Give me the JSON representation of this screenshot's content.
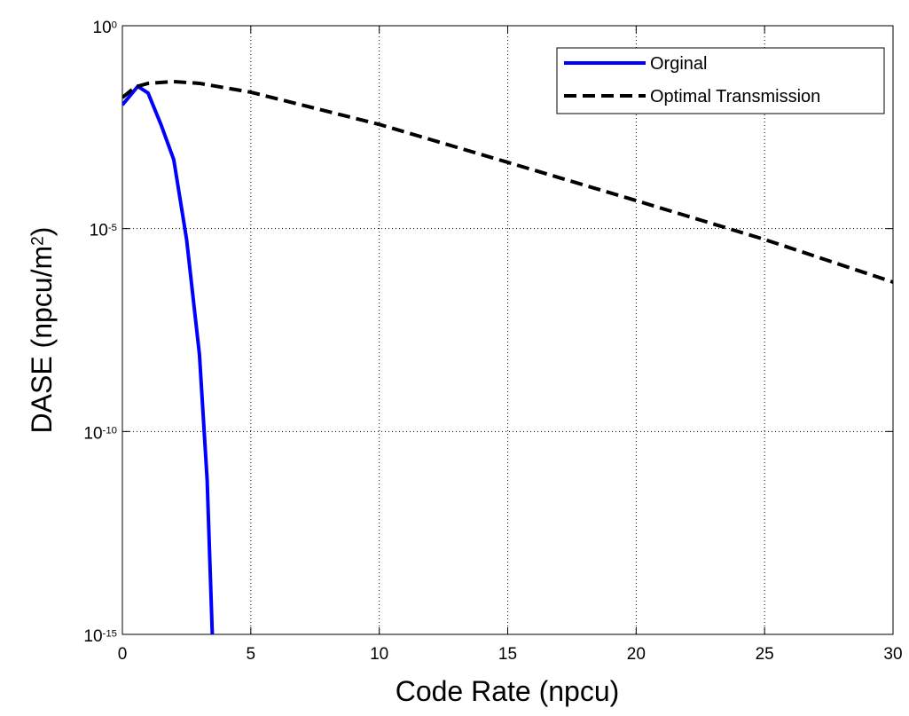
{
  "chart_data": {
    "type": "line",
    "xlabel": "Code Rate (npcu)",
    "ylabel": "DASE (npcu/m^2)",
    "xlim": [
      0,
      30
    ],
    "xticks": [
      0,
      5,
      10,
      15,
      20,
      25,
      30
    ],
    "ylim": [
      1e-15,
      1
    ],
    "ylog": true,
    "yticks": [
      {
        "value": 1e-15,
        "label": "10^-15"
      },
      {
        "value": 1e-10,
        "label": "10^-10"
      },
      {
        "value": 1e-05,
        "label": "10^-5"
      },
      {
        "value": 1,
        "label": "10^0"
      }
    ],
    "grid": true,
    "legend": "upper right",
    "series": [
      {
        "name": "Orginal",
        "color": "#0000ff",
        "dash": "solid",
        "x": [
          0,
          0.6,
          1,
          1.5,
          2,
          2.5,
          3,
          3.3,
          3.5
        ],
        "values": [
          0.0112,
          0.032,
          0.022,
          0.0037,
          0.0005,
          5.4e-06,
          7.9e-09,
          6.3e-12,
          1e-15
        ]
      },
      {
        "name": "Optimal Transmission",
        "color": "#000000",
        "dash": "dashed",
        "x": [
          0,
          0.5,
          1,
          2,
          3,
          5,
          10,
          15,
          20,
          25,
          30
        ],
        "values": [
          0.017,
          0.031,
          0.038,
          0.042,
          0.038,
          0.023,
          0.0037,
          0.00043,
          4.9e-05,
          5.4e-06,
          4.8e-07
        ]
      }
    ]
  }
}
